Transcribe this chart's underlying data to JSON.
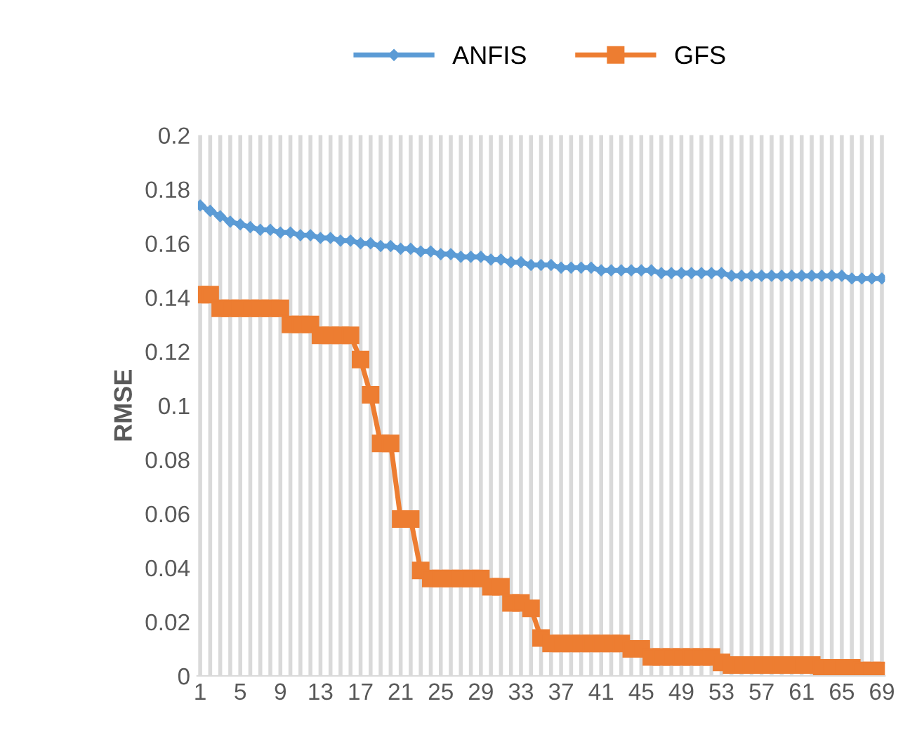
{
  "chart_data": {
    "type": "line",
    "ylabel": "RMSE",
    "categories": [
      "1",
      null,
      null,
      null,
      "5",
      null,
      null,
      null,
      "9",
      null,
      null,
      null,
      "13",
      null,
      null,
      null,
      "17",
      null,
      null,
      null,
      "21",
      null,
      null,
      null,
      "25",
      null,
      null,
      null,
      "29",
      null,
      null,
      null,
      "33",
      null,
      null,
      null,
      "37",
      null,
      null,
      null,
      "41",
      null,
      null,
      null,
      "45",
      null,
      null,
      null,
      "49",
      null,
      null,
      null,
      "53",
      null,
      null,
      null,
      "57",
      null,
      null,
      null,
      "61",
      null,
      null,
      null,
      "65",
      null,
      null,
      null,
      "69"
    ],
    "series": [
      {
        "name": "ANFIS",
        "color": "#5b9bd5",
        "marker": "diamond",
        "values": [
          0.174,
          0.172,
          0.17,
          0.168,
          0.167,
          0.166,
          0.165,
          0.165,
          0.164,
          0.164,
          0.163,
          0.163,
          0.162,
          0.162,
          0.161,
          0.161,
          0.16,
          0.16,
          0.159,
          0.159,
          0.158,
          0.158,
          0.157,
          0.157,
          0.156,
          0.156,
          0.155,
          0.155,
          0.155,
          0.154,
          0.154,
          0.153,
          0.153,
          0.152,
          0.152,
          0.152,
          0.151,
          0.151,
          0.151,
          0.151,
          0.15,
          0.15,
          0.15,
          0.15,
          0.15,
          0.15,
          0.149,
          0.149,
          0.149,
          0.149,
          0.149,
          0.149,
          0.149,
          0.148,
          0.148,
          0.148,
          0.148,
          0.148,
          0.148,
          0.148,
          0.148,
          0.148,
          0.148,
          0.148,
          0.148,
          0.147,
          0.147,
          0.147,
          0.147
        ]
      },
      {
        "name": "GFS",
        "color": "#ed7d31",
        "marker": "square",
        "values": [
          0.141,
          0.141,
          0.136,
          0.136,
          0.136,
          0.136,
          0.136,
          0.136,
          0.136,
          0.13,
          0.13,
          0.13,
          0.126,
          0.126,
          0.126,
          0.126,
          0.117,
          0.104,
          0.086,
          0.086,
          0.058,
          0.058,
          0.039,
          0.036,
          0.036,
          0.036,
          0.036,
          0.036,
          0.036,
          0.033,
          0.033,
          0.027,
          0.027,
          0.025,
          0.014,
          0.012,
          0.012,
          0.012,
          0.012,
          0.012,
          0.012,
          0.012,
          0.012,
          0.01,
          0.01,
          0.007,
          0.007,
          0.007,
          0.007,
          0.007,
          0.007,
          0.007,
          0.005,
          0.004,
          0.004,
          0.004,
          0.004,
          0.004,
          0.004,
          0.004,
          0.004,
          0.004,
          0.003,
          0.003,
          0.003,
          0.003,
          0.002,
          0.002,
          0.002
        ]
      }
    ],
    "ylim": [
      0,
      0.2
    ],
    "yticks": [
      0,
      0.02,
      0.04,
      0.06,
      0.08,
      0.1,
      0.12,
      0.14,
      0.16,
      0.18,
      0.2
    ],
    "grid": "x",
    "legend": "top"
  }
}
